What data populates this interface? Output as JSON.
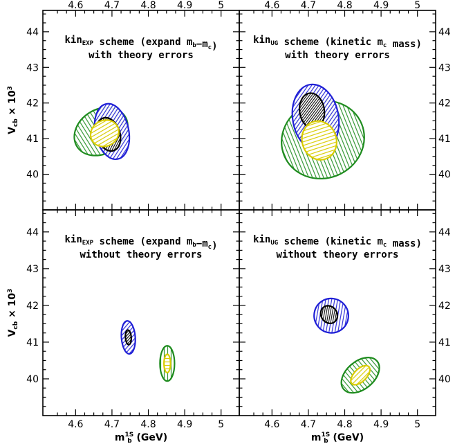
{
  "chart_data": {
    "type": "scatter",
    "description_x": "m_b^1S (GeV)",
    "xlabel": "m",
    "xlabel_sub": "b",
    "xlabel_sup": "1S",
    "xlabel_unit": " (GeV)",
    "ylabel": "V",
    "ylabel_sub": "cb",
    "ylabel_times": " × 10",
    "ylabel_sup": "3",
    "xlim": [
      4.51,
      5.05
    ],
    "ylim": [
      39.0,
      44.6
    ],
    "xticks": [
      "4.6",
      "4.7",
      "4.8",
      "4.9",
      "5"
    ],
    "yticks": [
      "40",
      "41",
      "42",
      "43",
      "44"
    ],
    "panels": [
      {
        "id": "top-left",
        "title": {
          "line1_prefix": "kin",
          "line1_sub": "EXP",
          "line1_mid": " scheme (expand m",
          "line1_sub2": "b",
          "line1_mid2": "−m",
          "line1_sub3": "c",
          "line1_end": ")",
          "line2": "with theory errors"
        },
        "ellipses": [
          {
            "name": "green",
            "color": "#1f8c1f",
            "hatch": "vertical",
            "cx": 4.67,
            "cy": 41.2,
            "rx": 0.078,
            "ry": 0.62,
            "angle": -32
          },
          {
            "name": "blue",
            "color": "#1f1fd6",
            "hatch": "diagonal",
            "cx": 4.7,
            "cy": 41.2,
            "rx": 0.046,
            "ry": 0.79,
            "angle": -12
          },
          {
            "name": "black",
            "color": "#000000",
            "hatch": "diagonal-dense",
            "cx": 4.69,
            "cy": 41.12,
            "rx": 0.032,
            "ry": 0.48,
            "angle": -18
          },
          {
            "name": "yellow",
            "color": "#d9cc00",
            "hatch": "horizontal",
            "cx": 4.68,
            "cy": 41.15,
            "rx": 0.04,
            "ry": 0.36,
            "angle": -30
          }
        ]
      },
      {
        "id": "top-right",
        "title": {
          "line1_prefix": "kin",
          "line1_sub": "UG",
          "line1_mid": " scheme (kinetic m",
          "line1_sub2": "c",
          "line1_mid2": " mass)",
          "line1_sub3": "",
          "line1_end": "",
          "line2": "with theory errors"
        },
        "ellipses": [
          {
            "name": "green",
            "color": "#1f8c1f",
            "hatch": "vertical",
            "cx": 4.74,
            "cy": 40.97,
            "rx": 0.115,
            "ry": 1.08,
            "angle": -22
          },
          {
            "name": "blue",
            "color": "#1f1fd6",
            "hatch": "diagonal",
            "cx": 4.72,
            "cy": 41.58,
            "rx": 0.063,
            "ry": 0.95,
            "angle": -10
          },
          {
            "name": "black",
            "color": "#000000",
            "hatch": "diagonal-dense",
            "cx": 4.71,
            "cy": 41.78,
            "rx": 0.034,
            "ry": 0.5,
            "angle": -8
          },
          {
            "name": "yellow",
            "color": "#d9cc00",
            "hatch": "horizontal",
            "cx": 4.73,
            "cy": 40.95,
            "rx": 0.047,
            "ry": 0.55,
            "angle": -18
          }
        ]
      },
      {
        "id": "bottom-left",
        "title": {
          "line1_prefix": "kin",
          "line1_sub": "EXP",
          "line1_mid": " scheme (expand m",
          "line1_sub2": "b",
          "line1_mid2": "−m",
          "line1_sub3": "c",
          "line1_end": ")",
          "line2": "without theory errors"
        },
        "ellipses": [
          {
            "name": "blue",
            "color": "#1f1fd6",
            "hatch": "diagonal",
            "cx": 4.745,
            "cy": 41.13,
            "rx": 0.019,
            "ry": 0.45,
            "angle": -4
          },
          {
            "name": "black",
            "color": "#000000",
            "hatch": "diagonal-dense",
            "cx": 4.745,
            "cy": 41.13,
            "rx": 0.008,
            "ry": 0.2,
            "angle": -4
          },
          {
            "name": "green",
            "color": "#1f8c1f",
            "hatch": "vertical",
            "cx": 4.852,
            "cy": 40.42,
            "rx": 0.02,
            "ry": 0.48,
            "angle": 0
          },
          {
            "name": "yellow",
            "color": "#d9cc00",
            "hatch": "horizontal",
            "cx": 4.852,
            "cy": 40.42,
            "rx": 0.009,
            "ry": 0.25,
            "angle": 0
          }
        ]
      },
      {
        "id": "bottom-right",
        "title": {
          "line1_prefix": "kin",
          "line1_sub": "UG",
          "line1_mid": " scheme (kinetic m",
          "line1_sub2": "c",
          "line1_mid2": " mass)",
          "line1_sub3": "",
          "line1_end": "",
          "line2": "without theory errors"
        },
        "ellipses": [
          {
            "name": "blue",
            "color": "#1f1fd6",
            "hatch": "diagonal",
            "cx": 4.763,
            "cy": 41.72,
            "rx": 0.047,
            "ry": 0.47,
            "angle": -35
          },
          {
            "name": "black",
            "color": "#000000",
            "hatch": "diagonal-dense",
            "cx": 4.757,
            "cy": 41.75,
            "rx": 0.022,
            "ry": 0.25,
            "angle": -35
          },
          {
            "name": "green",
            "color": "#1f8c1f",
            "hatch": "vertical",
            "cx": 4.843,
            "cy": 40.1,
            "rx": 0.06,
            "ry": 0.38,
            "angle": -40
          },
          {
            "name": "yellow",
            "color": "#d9cc00",
            "hatch": "horizontal",
            "cx": 4.843,
            "cy": 40.1,
            "rx": 0.033,
            "ry": 0.17,
            "angle": -45
          }
        ]
      }
    ]
  }
}
